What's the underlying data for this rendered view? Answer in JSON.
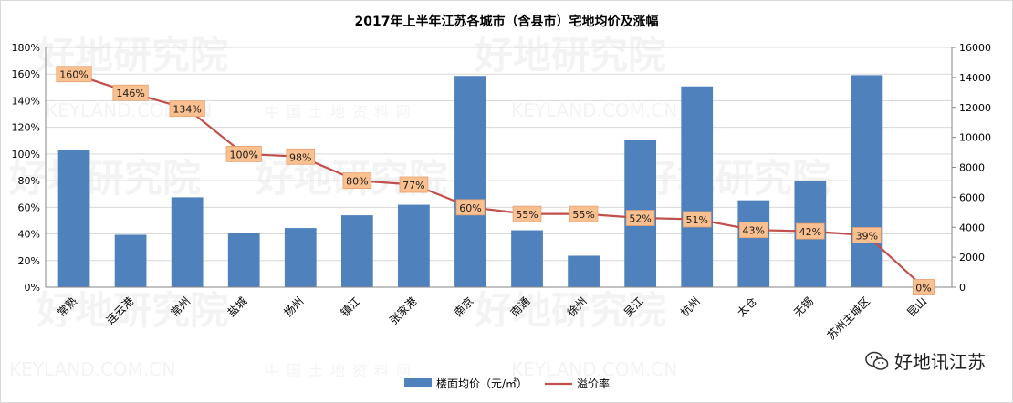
{
  "chart_data": {
    "type": "bar+line",
    "title": "2017年上半年江苏各城市（含县市）宅地均价及涨幅",
    "categories": [
      "常熟",
      "连云港",
      "常州",
      "盐城",
      "扬州",
      "镇江",
      "张家港",
      "南京",
      "南通",
      "徐州",
      "吴江",
      "杭州",
      "太仓",
      "无锡",
      "苏州主城区",
      "昆山"
    ],
    "series": [
      {
        "name": "楼面均价（元/㎡）",
        "type": "bar",
        "axis": "right",
        "color": "#4f81bd",
        "values": [
          9150,
          3500,
          6000,
          3650,
          3950,
          4800,
          5500,
          14100,
          3800,
          2100,
          9850,
          13400,
          5800,
          7100,
          14150,
          0
        ]
      },
      {
        "name": "溢价率",
        "type": "line",
        "axis": "left",
        "color": "#c0504d",
        "values": [
          160,
          146,
          134,
          100,
          98,
          80,
          77,
          60,
          55,
          55,
          52,
          51,
          43,
          42,
          39,
          0
        ],
        "labels": [
          "160%",
          "146%",
          "134%",
          "100%",
          "98%",
          "80%",
          "77%",
          "60%",
          "55%",
          "55%",
          "52%",
          "51%",
          "43%",
          "42%",
          "39%",
          "0%"
        ]
      }
    ],
    "y_left": {
      "min": 0,
      "max": 180,
      "ticks": [
        "0%",
        "20%",
        "40%",
        "60%",
        "80%",
        "100%",
        "120%",
        "140%",
        "160%",
        "180%"
      ]
    },
    "y_right": {
      "min": 0,
      "max": 16000,
      "ticks": [
        "0",
        "2000",
        "4000",
        "6000",
        "8000",
        "10000",
        "12000",
        "14000",
        "16000"
      ]
    },
    "grid": true,
    "legend_position": "bottom",
    "watermark": {
      "brand": "好地研究院",
      "site": "KEYLAND.COM.CN",
      "cn": "中国土地资料网"
    },
    "badge": "好地讯江苏",
    "colors": {
      "bar": "#4f81bd",
      "line": "#c0504d",
      "label_bg": "#fac090",
      "label_border": "#e8a070"
    }
  }
}
